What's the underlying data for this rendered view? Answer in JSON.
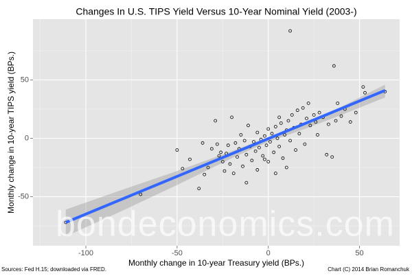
{
  "chart_data": {
    "type": "scatter",
    "title": "Changes In U.S. TIPS Yield Versus 10-Year Nominal Yield (2003-)",
    "x_label": "Monthly change in 10-year Treasury yield (BPs.)",
    "y_label": "Monthly change in 10-year TIPS yield (BPs.)",
    "source": "Sources: Fed H.15; downloaded via FRED.",
    "credit": "Chart (C) 2014 Brian Romanchuk",
    "watermark": "bondeconomics.com",
    "color": "#000000",
    "x": [
      -111,
      -70,
      -43,
      -38,
      -35,
      -33,
      -31,
      -29,
      -28,
      -26,
      -25,
      -24,
      -23,
      -22,
      -21,
      -20,
      -19,
      -18,
      -17,
      -16,
      -15,
      -14,
      -13,
      -12,
      -12,
      -11,
      -10,
      -9,
      -8,
      -7,
      -6,
      -6,
      -5,
      -4,
      -3,
      -2,
      -1,
      0,
      0,
      1,
      2,
      3,
      4,
      5,
      6,
      7,
      8,
      9,
      10,
      10,
      11,
      12,
      12,
      13,
      14,
      15,
      16,
      17,
      18,
      19,
      20,
      21,
      22,
      23,
      25,
      26,
      27,
      28,
      30,
      32,
      33,
      35,
      36,
      37,
      38,
      40,
      42,
      45,
      48,
      52,
      53,
      64,
      -50,
      -47,
      -36,
      -2,
      4,
      6,
      -27
    ],
    "values": [
      -72,
      -48,
      -18,
      -43,
      -31,
      -25,
      -9,
      15,
      -5,
      -12,
      -20,
      -28,
      -13,
      -6,
      -22,
      18,
      -30,
      -4,
      -16,
      -9,
      3,
      -24,
      -2,
      -38,
      -14,
      11,
      -7,
      -19,
      -3,
      -11,
      5,
      -27,
      -8,
      -1,
      -15,
      2,
      -6,
      -20,
      8,
      -3,
      4,
      -12,
      10,
      0,
      -7,
      13,
      -17,
      3,
      -25,
      7,
      15,
      92,
      -2,
      20,
      9,
      -10,
      24,
      4,
      12,
      26,
      -5,
      17,
      30,
      11,
      20,
      14,
      3,
      22,
      18,
      -14,
      12,
      -16,
      62,
      15,
      30,
      19,
      25,
      14,
      22,
      44,
      39,
      40,
      -10,
      -26,
      -4,
      -18,
      -30,
      18,
      -15
    ],
    "trend": {
      "color": "#3366ff",
      "band_color": "#999999",
      "x": [
        -111,
        64
      ],
      "y": [
        -72,
        41
      ],
      "band_x": [
        -111,
        -80,
        -50,
        -20,
        0,
        20,
        40,
        64
      ],
      "band_upper": [
        -61,
        -44,
        -28,
        -11,
        1,
        13,
        27,
        46
      ],
      "band_lower": [
        -84,
        -62,
        -40,
        -17,
        -3,
        8,
        20,
        35
      ]
    },
    "xlim": [
      -129,
      72
    ],
    "ylim": [
      -92,
      102
    ],
    "xticks": [
      -100,
      -50,
      0,
      50
    ],
    "yticks": [
      -50,
      0,
      50
    ],
    "x_minor_ticks": [
      -125,
      -75,
      -25,
      25
    ],
    "y_minor_ticks": [
      -75,
      -25,
      25,
      75
    ],
    "grid": true
  }
}
